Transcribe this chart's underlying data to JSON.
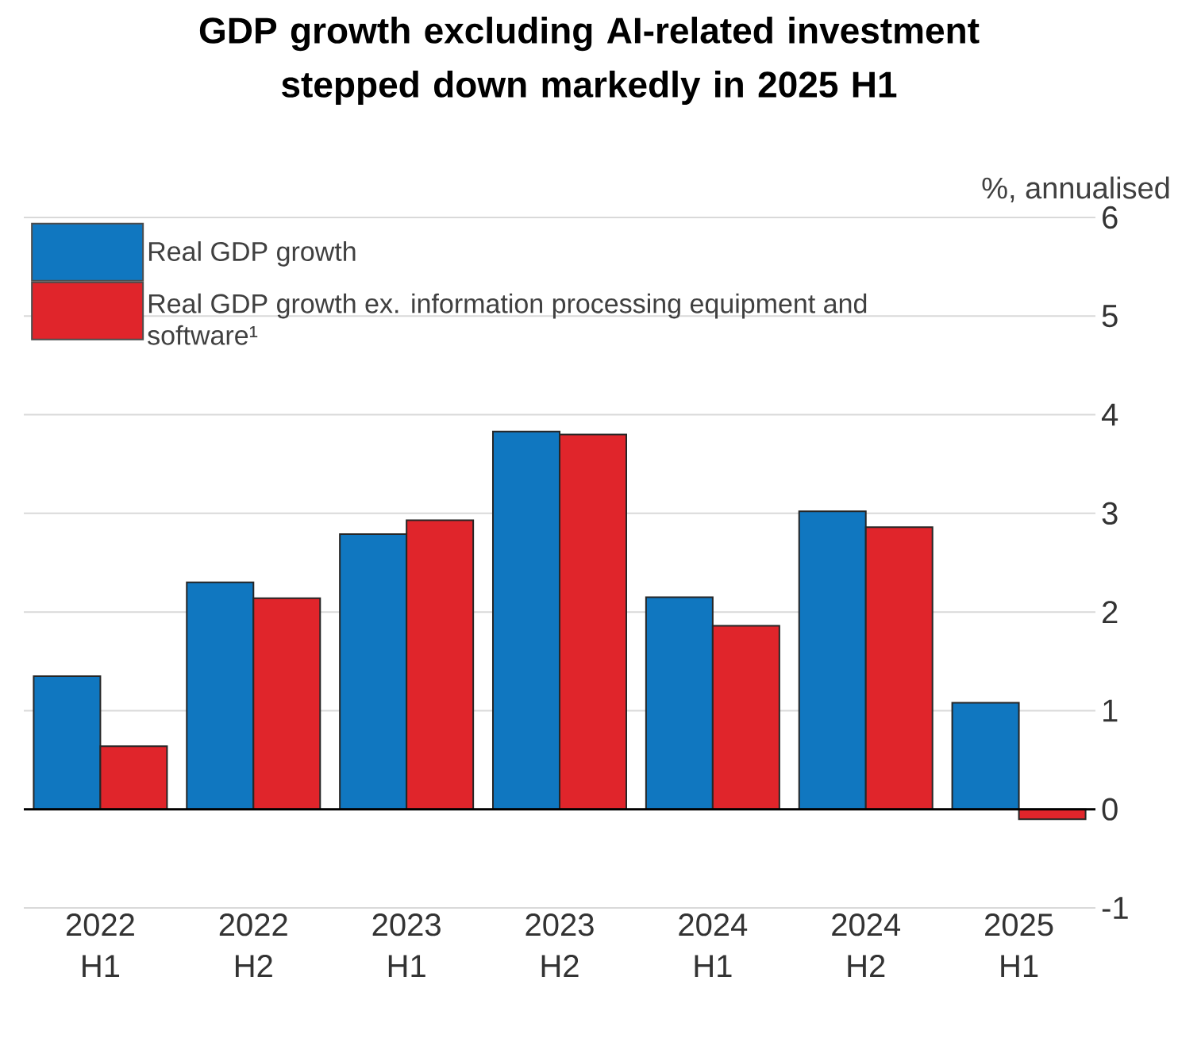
{
  "chart_data": {
    "type": "bar",
    "title": "GDP growth excluding AI-related investment stepped down markedly in 2025 H1",
    "ylabel": "%, annualised",
    "categories": [
      "2022 H1",
      "2022 H2",
      "2023 H1",
      "2023 H2",
      "2024 H1",
      "2024 H2",
      "2025 H1"
    ],
    "series": [
      {
        "name": "Real GDP growth",
        "color": "#1077c0",
        "values": [
          1.35,
          2.3,
          2.79,
          3.83,
          2.15,
          3.02,
          1.08
        ]
      },
      {
        "name": "Real GDP growth ex. information processing equipment and software¹",
        "color": "#e0252b",
        "values": [
          0.64,
          2.14,
          2.93,
          3.8,
          1.86,
          2.86,
          -0.1
        ]
      }
    ],
    "ylim": [
      -1,
      6
    ],
    "yticks": [
      -1,
      0,
      1,
      2,
      3,
      4,
      5,
      6
    ],
    "grid": "y",
    "legend": "top left"
  }
}
